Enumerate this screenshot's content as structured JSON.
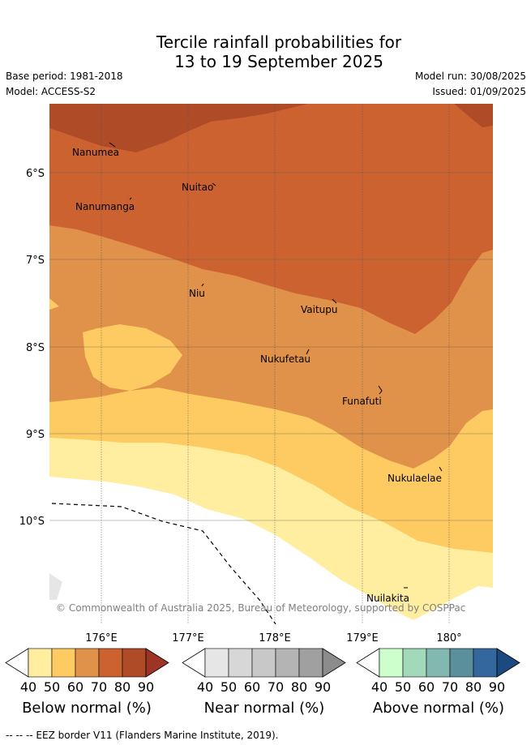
{
  "header": {
    "title_line1": "Tercile rainfall probabilities for",
    "title_line2": "13 to 19 September 2025",
    "base_period": "Base period: 1981-2018",
    "model": "Model: ACCESS-S2",
    "model_run": "Model run: 30/08/2025",
    "issued": "Issued: 01/09/2025"
  },
  "map": {
    "lat_labels": [
      "6°S",
      "7°S",
      "8°S",
      "9°S",
      "10°S"
    ],
    "lon_labels": [
      "176°E",
      "177°E",
      "178°E",
      "179°E",
      "180°"
    ],
    "islands": [
      "Nanumea",
      "Nuitao",
      "Nanumanga",
      "Niu",
      "Vaitupu",
      "Nukufetau",
      "Funafuti",
      "Nukulaelae",
      "Nuilakita"
    ],
    "copyright": "© Commonwealth of Australia 2025, Bureau of Meteorology, supported by COSPPac"
  },
  "colorbars": [
    {
      "title": "Below normal (%)",
      "ticks": [
        "40",
        "50",
        "60",
        "70",
        "80",
        "90"
      ],
      "colors": [
        "#ffeda0",
        "#fecb63",
        "#e0914a",
        "#cd6231",
        "#b04b28",
        "#9e3425"
      ]
    },
    {
      "title": "Near normal (%)",
      "ticks": [
        "40",
        "50",
        "60",
        "70",
        "80",
        "90"
      ],
      "colors": [
        "#e6e6e6",
        "#d7d7d7",
        "#c8c8c8",
        "#b4b4b4",
        "#a0a0a0",
        "#8c8c8c"
      ]
    },
    {
      "title": "Above normal (%)",
      "ticks": [
        "40",
        "50",
        "60",
        "70",
        "80",
        "90"
      ],
      "colors": [
        "#ccffcc",
        "#a3d9bb",
        "#82b8b0",
        "#5b8f9c",
        "#34679e",
        "#1a4a80"
      ]
    }
  ],
  "footnote": "-- -- -- EEZ border V11 (Flanders Marine Institute, 2019)."
}
